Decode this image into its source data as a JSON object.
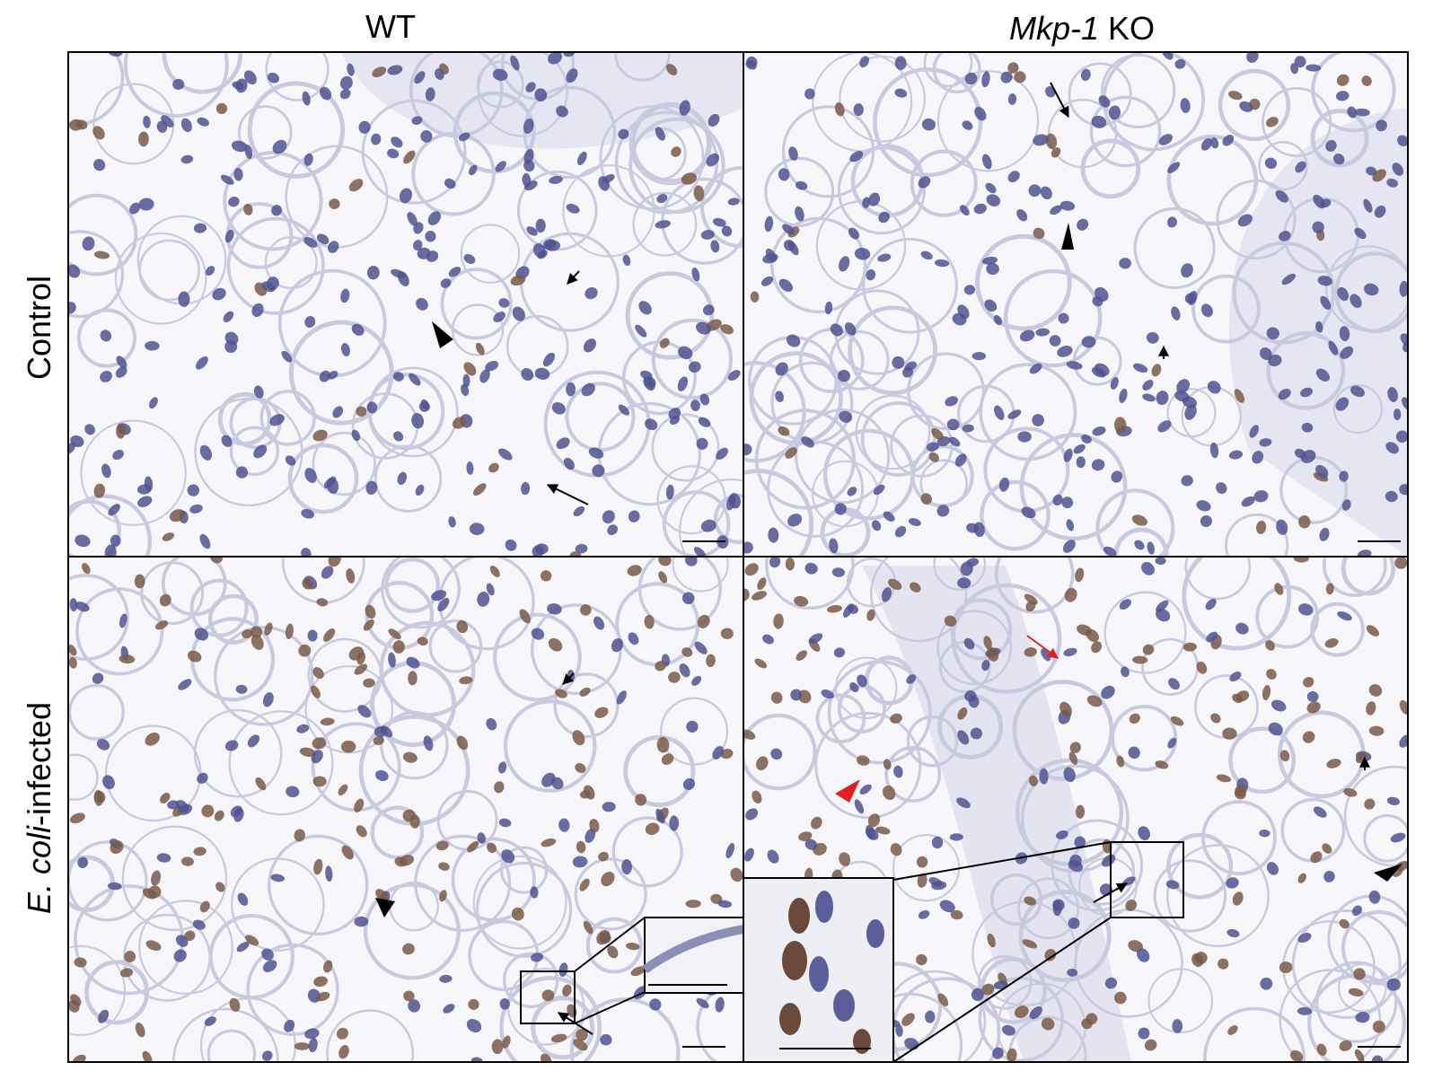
{
  "column_labels": {
    "wt": "WT",
    "ko": {
      "gene": "Mkp-1",
      "suffix": "KO"
    }
  },
  "row_labels": {
    "control": "Control",
    "infected": {
      "species": "E. coli",
      "suffix": "-infected"
    }
  }
}
